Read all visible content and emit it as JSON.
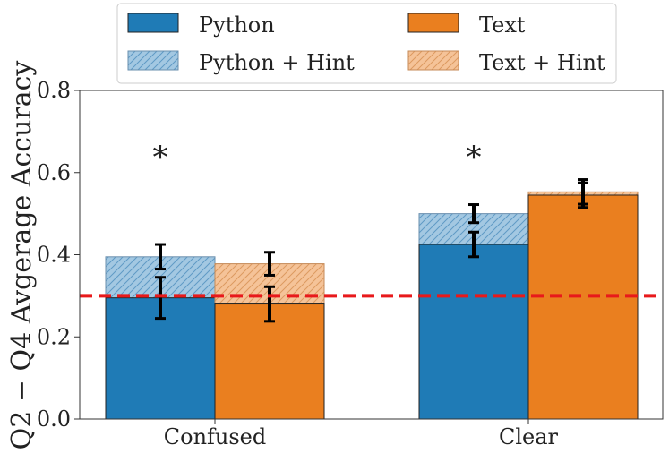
{
  "chart_data": {
    "type": "bar",
    "title": "",
    "xlabel": "",
    "ylabel": "Q2 − Q4 Avgerage Accuracy",
    "ylim": [
      0.0,
      0.8
    ],
    "yticks": [
      "0.0",
      "0.2",
      "0.4",
      "0.6",
      "0.8"
    ],
    "ytick_values": [
      0.0,
      0.2,
      0.4,
      0.6,
      0.8
    ],
    "categories": [
      "Confused",
      "Clear"
    ],
    "series": [
      {
        "name": "Python",
        "values": [
          0.295,
          0.425
        ],
        "errors": [
          0.05,
          0.03
        ],
        "color": "#1f7bb6"
      },
      {
        "name": "Text",
        "values": [
          0.28,
          0.545
        ],
        "errors": [
          0.042,
          0.03
        ],
        "color": "#ea7f1f"
      }
    ],
    "hint_series": [
      {
        "name": "Python + Hint",
        "values": [
          0.395,
          0.5
        ],
        "errors": [
          0.03,
          0.022
        ],
        "color": "#1f7bb6"
      },
      {
        "name": "Text + Hint",
        "values": [
          0.378,
          0.553
        ],
        "errors": [
          0.028,
          0.03
        ],
        "color": "#ea7f1f"
      }
    ],
    "reference_line": {
      "value": 0.3,
      "color": "#e8191b"
    },
    "significance_markers": [
      {
        "category": "Confused",
        "label": "*",
        "y": 0.66
      },
      {
        "category": "Clear",
        "label": "*",
        "y": 0.66
      }
    ],
    "legend": {
      "placement": "top",
      "entries": [
        "Python",
        "Text",
        "Python + Hint",
        "Text + Hint"
      ]
    },
    "grid": false
  }
}
